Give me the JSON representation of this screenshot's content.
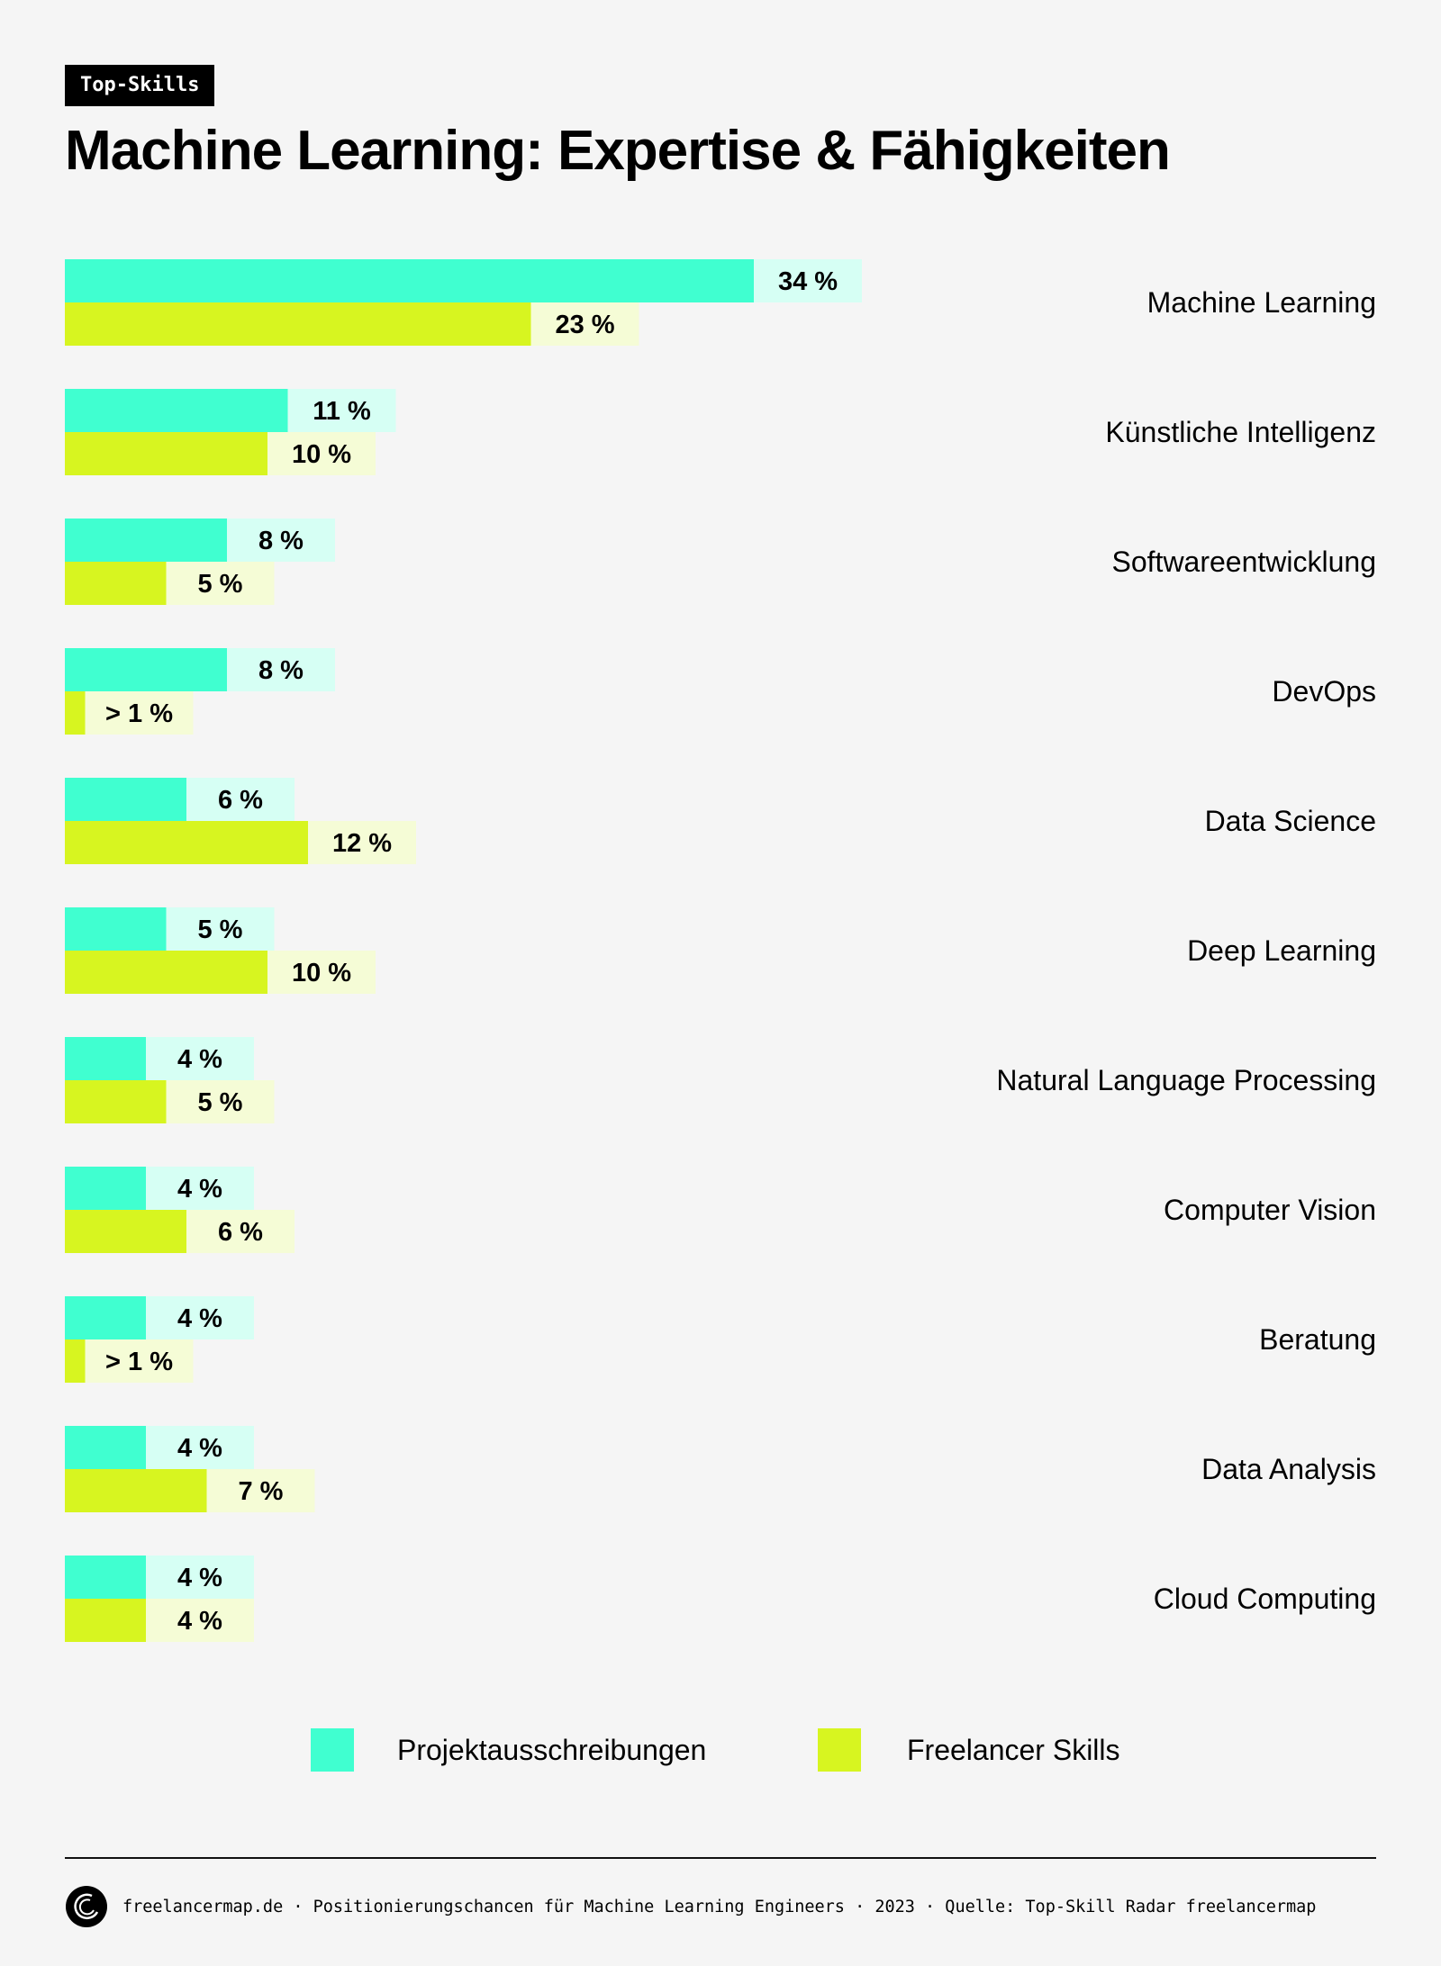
{
  "badge": "Top-Skills",
  "title": "Machine Learning: Expertise & Fähigkeiten",
  "colors": {
    "projekt": "#40ffd0",
    "projekt_light": "#d6fff4",
    "freelancer": "#d7f520",
    "freelancer_light": "#f5fcd6",
    "background": "#f5f5f5"
  },
  "chart_data": {
    "type": "bar",
    "orientation": "horizontal",
    "title": "Machine Learning: Expertise & Fähigkeiten",
    "categories": [
      "Machine Learning",
      "Künstliche Intelligenz",
      "Softwareentwicklung",
      "DevOps",
      "Data Science",
      "Deep Learning",
      "Natural Language Processing",
      "Computer Vision",
      "Beratung",
      "Data Analysis",
      "Cloud Computing"
    ],
    "series": [
      {
        "name": "Projektausschreibungen",
        "values": [
          34,
          11,
          8,
          8,
          6,
          5,
          4,
          4,
          4,
          4,
          4
        ],
        "labels": [
          "34 %",
          "11 %",
          "8 %",
          "8 %",
          "6 %",
          "5 %",
          "4 %",
          "4 %",
          "4 %",
          "4 %",
          "4 %"
        ]
      },
      {
        "name": "Freelancer Skills",
        "values": [
          23,
          10,
          5,
          1,
          12,
          10,
          5,
          6,
          1,
          7,
          4
        ],
        "labels": [
          "23 %",
          "10 %",
          "5 %",
          "> 1 %",
          "12 %",
          "10 %",
          "5 %",
          "6 %",
          "> 1 %",
          "7 %",
          "4 %"
        ]
      }
    ],
    "unit": "%",
    "legend_position": "bottom",
    "grid": false
  },
  "legend": [
    "Projektausschreibungen",
    "Freelancer Skills"
  ],
  "footer": {
    "logo_icon": "freelancermap-logo",
    "text": "freelancermap.de · Positionierungschancen für Machine Learning Engineers · 2023 · Quelle: Top-Skill Radar freelancermap"
  }
}
